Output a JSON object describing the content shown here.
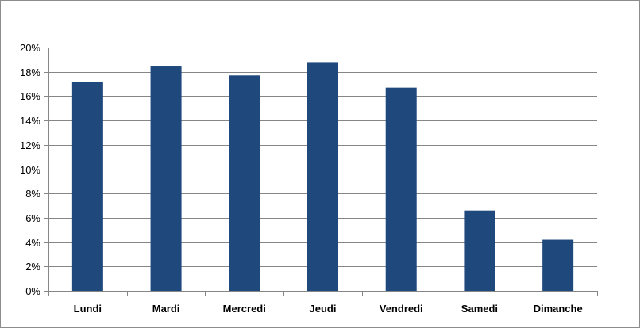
{
  "chart_data": {
    "type": "bar",
    "title": "",
    "xlabel": "",
    "ylabel": "",
    "categories": [
      "Lundi",
      "Mardi",
      "Mercredi",
      "Jeudi",
      "Vendredi",
      "Samedi",
      "Dimanche"
    ],
    "values": [
      17.2,
      18.5,
      17.7,
      18.8,
      16.7,
      6.6,
      4.2
    ],
    "ylim": [
      0,
      20
    ],
    "yticks": [
      0,
      2,
      4,
      6,
      8,
      10,
      12,
      14,
      16,
      18,
      20
    ],
    "ytick_labels": [
      "0%",
      "2%",
      "4%",
      "6%",
      "8%",
      "10%",
      "12%",
      "14%",
      "16%",
      "18%",
      "20%"
    ],
    "grid": true,
    "legend": "none",
    "colors": {
      "bar": "#1F497D",
      "grid": "#868686",
      "axis": "#868686",
      "text": "#000000"
    }
  }
}
